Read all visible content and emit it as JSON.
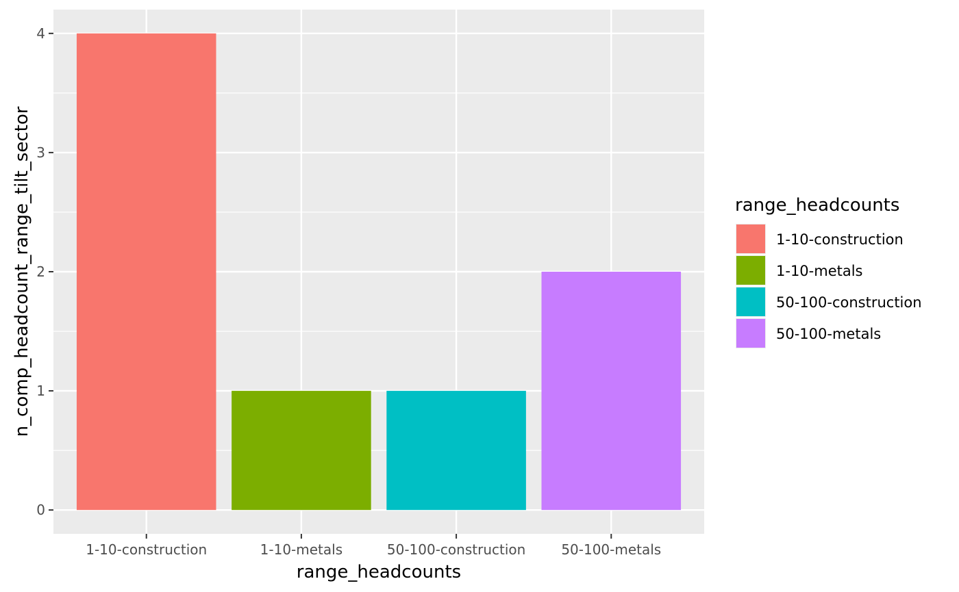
{
  "chart_data": {
    "type": "bar",
    "categories": [
      "1-10-construction",
      "1-10-metals",
      "50-100-construction",
      "50-100-metals"
    ],
    "values": [
      4,
      1,
      1,
      2
    ],
    "colors": [
      "#F8766D",
      "#7CAE00",
      "#00BFC4",
      "#C77CFF"
    ],
    "xlabel": "range_headcounts",
    "ylabel": "n_comp_headcount_range_tilt_sector",
    "ylim": [
      -0.2,
      4.2
    ],
    "yticks": [
      "0",
      "1",
      "2",
      "3",
      "4"
    ],
    "grid": true,
    "legend": {
      "title": "range_headcounts",
      "placement": "right",
      "entries": [
        "1-10-construction",
        "1-10-metals",
        "50-100-construction",
        "50-100-metals"
      ]
    },
    "panel_background": "#EBEBEB",
    "grid_color": "#FFFFFF"
  }
}
